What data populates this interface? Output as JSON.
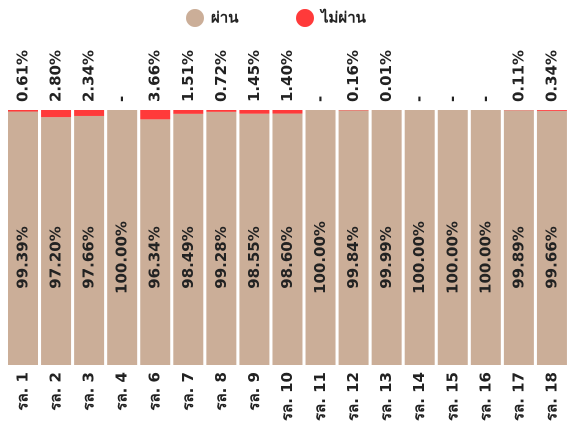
{
  "chart_data": {
    "type": "stacked_bar",
    "categories": [
      "รล. 1",
      "รล. 2",
      "รล. 3",
      "รล. 4",
      "รล. 6",
      "รล. 7",
      "รล. 8",
      "รล. 9",
      "รล. 10",
      "รล. 11",
      "รล. 12",
      "รล. 13",
      "รล. 14",
      "รล. 15",
      "รล. 16",
      "รล. 17",
      "รล. 18"
    ],
    "series": [
      {
        "name": "ผ่าน",
        "color": "#cbae98",
        "values": [
          99.39,
          97.2,
          97.66,
          100,
          96.34,
          98.49,
          99.28,
          98.55,
          98.6,
          100,
          99.84,
          99.99,
          100,
          100,
          100,
          99.89,
          99.66
        ],
        "value_labels": [
          "99.39%",
          "97.20%",
          "97.66%",
          "100.00%",
          "96.34%",
          "98.49%",
          "99.28%",
          "98.55%",
          "98.60%",
          "100.00%",
          "99.84%",
          "99.99%",
          "100.00%",
          "100.00%",
          "100.00%",
          "99.89%",
          "99.66%"
        ]
      },
      {
        "name": "ไม่ผ่าน",
        "color": "#ff3a3a",
        "values": [
          0.61,
          2.8,
          2.34,
          null,
          3.66,
          1.51,
          0.72,
          1.45,
          1.4,
          null,
          0.16,
          0.01,
          null,
          null,
          null,
          0.11,
          0.34
        ],
        "value_labels": [
          "0.61%",
          "2.80%",
          "2.34%",
          "-",
          "3.66%",
          "1.51%",
          "0.72%",
          "1.45%",
          "1.40%",
          "-",
          "0.16%",
          "0.01%",
          "-",
          "-",
          "-",
          "0.11%",
          "0.34%"
        ]
      }
    ],
    "ylim": [
      0,
      100
    ]
  }
}
